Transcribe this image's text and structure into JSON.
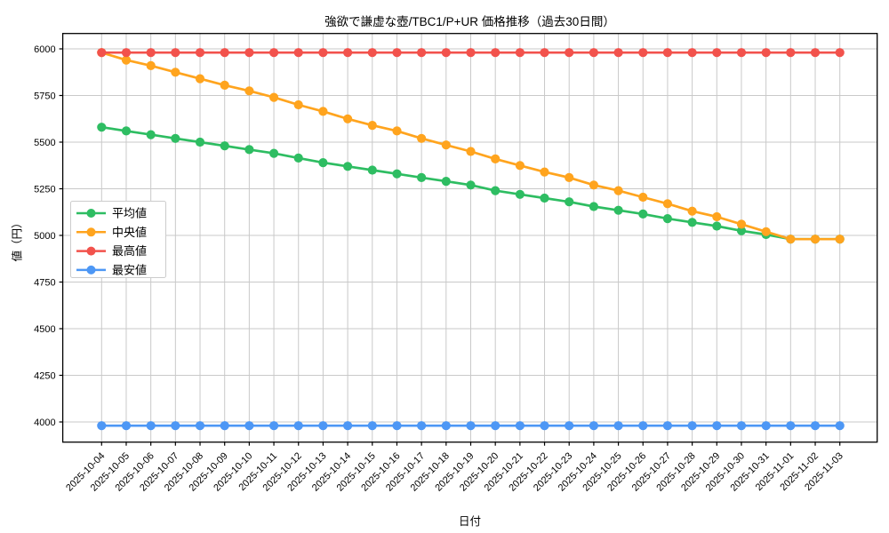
{
  "chart": {
    "title": "強欲で謙虚な壺/TBC1/P+UR 価格推移（過去30日間）",
    "xlabel": "日付",
    "ylabel": "値（円）"
  },
  "chart_data": {
    "type": "line",
    "title": "強欲で謙虚な壺/TBC1/P+UR 価格推移（過去30日間）",
    "xlabel": "日付",
    "ylabel": "値（円）",
    "x": [
      "2025-10-04",
      "2025-10-05",
      "2025-10-06",
      "2025-10-07",
      "2025-10-08",
      "2025-10-09",
      "2025-10-10",
      "2025-10-11",
      "2025-10-12",
      "2025-10-13",
      "2025-10-14",
      "2025-10-15",
      "2025-10-16",
      "2025-10-17",
      "2025-10-18",
      "2025-10-19",
      "2025-10-20",
      "2025-10-21",
      "2025-10-22",
      "2025-10-23",
      "2025-10-24",
      "2025-10-25",
      "2025-10-26",
      "2025-10-27",
      "2025-10-28",
      "2025-10-29",
      "2025-10-30",
      "2025-10-31",
      "2025-11-01",
      "2025-11-02",
      "2025-11-03"
    ],
    "series": [
      {
        "key": "average",
        "name": "平均値",
        "color": "#2EBD62",
        "values": [
          5580,
          5560,
          5540,
          5520,
          5500,
          5480,
          5460,
          5440,
          5415,
          5390,
          5370,
          5350,
          5330,
          5310,
          5290,
          5270,
          5240,
          5220,
          5200,
          5180,
          5155,
          5135,
          5115,
          5090,
          5070,
          5050,
          5025,
          5005,
          4980,
          4980,
          4980
        ]
      },
      {
        "key": "median",
        "name": "中央値",
        "color": "#FFA41E",
        "values": [
          5980,
          5940,
          5910,
          5875,
          5840,
          5805,
          5775,
          5740,
          5700,
          5665,
          5625,
          5590,
          5560,
          5520,
          5485,
          5450,
          5410,
          5375,
          5340,
          5310,
          5270,
          5240,
          5205,
          5170,
          5130,
          5100,
          5060,
          5020,
          4980,
          4980,
          4980
        ]
      },
      {
        "key": "max",
        "name": "最高値",
        "color": "#F2524C",
        "values": [
          5980,
          5980,
          5980,
          5980,
          5980,
          5980,
          5980,
          5980,
          5980,
          5980,
          5980,
          5980,
          5980,
          5980,
          5980,
          5980,
          5980,
          5980,
          5980,
          5980,
          5980,
          5980,
          5980,
          5980,
          5980,
          5980,
          5980,
          5980,
          5980,
          5980,
          5980
        ]
      },
      {
        "key": "min",
        "name": "最安値",
        "color": "#4D97F5",
        "values": [
          3980,
          3980,
          3980,
          3980,
          3980,
          3980,
          3980,
          3980,
          3980,
          3980,
          3980,
          3980,
          3980,
          3980,
          3980,
          3980,
          3980,
          3980,
          3980,
          3980,
          3980,
          3980,
          3980,
          3980,
          3980,
          3980,
          3980,
          3980,
          3980,
          3980,
          3980
        ]
      }
    ],
    "yticks": [
      4000,
      4250,
      4500,
      4750,
      5000,
      5250,
      5500,
      5750,
      6000
    ],
    "ylim": [
      3890,
      6080
    ],
    "grid": true,
    "legend_position": "upper-left-inside",
    "colors": {
      "grid": "#c9c9c9",
      "axis": "#000000",
      "background": "#ffffff",
      "legend_border": "#cccccc"
    }
  }
}
